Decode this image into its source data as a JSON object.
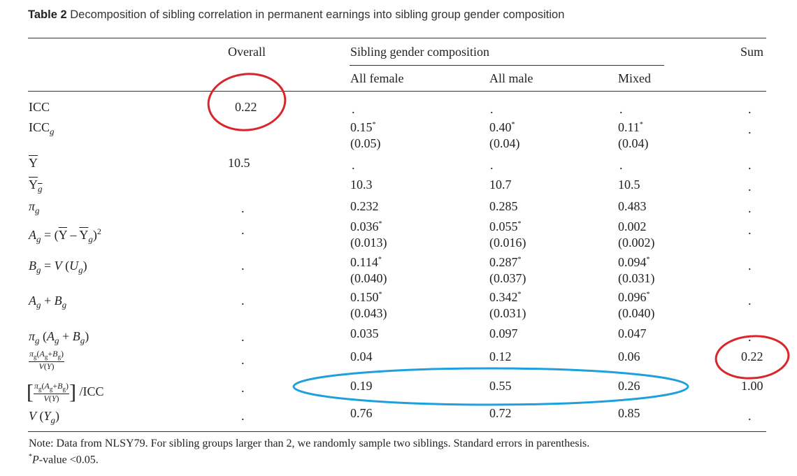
{
  "caption": {
    "label": "Table 2",
    "text": "Decomposition of sibling correlation in permanent earnings into sibling group gender composition"
  },
  "headers": {
    "overall": "Overall",
    "group": "Sibling gender composition",
    "sum": "Sum",
    "all_female": "All female",
    "all_male": "All male",
    "mixed": "Mixed"
  },
  "dot": ".",
  "rows": {
    "icc": {
      "label": "ICC",
      "overall": "0.22"
    },
    "iccg": {
      "female": "0.15",
      "female_se": "(0.05)",
      "male": "0.40",
      "male_se": "(0.04)",
      "mixed": "0.11",
      "mixed_se": "(0.04)"
    },
    "ybar": {
      "overall": "10.5"
    },
    "ybarg": {
      "female": "10.3",
      "male": "10.7",
      "mixed": "10.5"
    },
    "pig": {
      "female": "0.232",
      "male": "0.285",
      "mixed": "0.483"
    },
    "ag": {
      "female": "0.036",
      "female_se": "(0.013)",
      "male": "0.055",
      "male_se": "(0.016)",
      "mixed": "0.002",
      "mixed_se": "(0.002)"
    },
    "bg": {
      "female": "0.114",
      "female_se": "(0.040)",
      "male": "0.287",
      "male_se": "(0.037)",
      "mixed": "0.094",
      "mixed_se": "(0.031)"
    },
    "agbg": {
      "female": "0.150",
      "female_se": "(0.043)",
      "male": "0.342",
      "male_se": "(0.031)",
      "mixed": "0.096",
      "mixed_se": "(0.040)"
    },
    "pi_agbg": {
      "female": "0.035",
      "male": "0.097",
      "mixed": "0.047"
    },
    "frac": {
      "female": "0.04",
      "male": "0.12",
      "mixed": "0.06",
      "sum": "0.22"
    },
    "frac_icc": {
      "label_suffix": "/ICC",
      "female": "0.19",
      "male": "0.55",
      "mixed": "0.26",
      "sum": "1.00"
    },
    "vyg": {
      "female": "0.76",
      "male": "0.72",
      "mixed": "0.85"
    }
  },
  "note": {
    "line1": "Note: Data from NLSY79. For sibling groups larger than 2, we randomly sample two siblings. Standard errors in parenthesis.",
    "line2": "P-value <0.05."
  },
  "colors": {
    "red_circle": "#d9262b",
    "blue_ellipse": "#1ea0dc"
  }
}
